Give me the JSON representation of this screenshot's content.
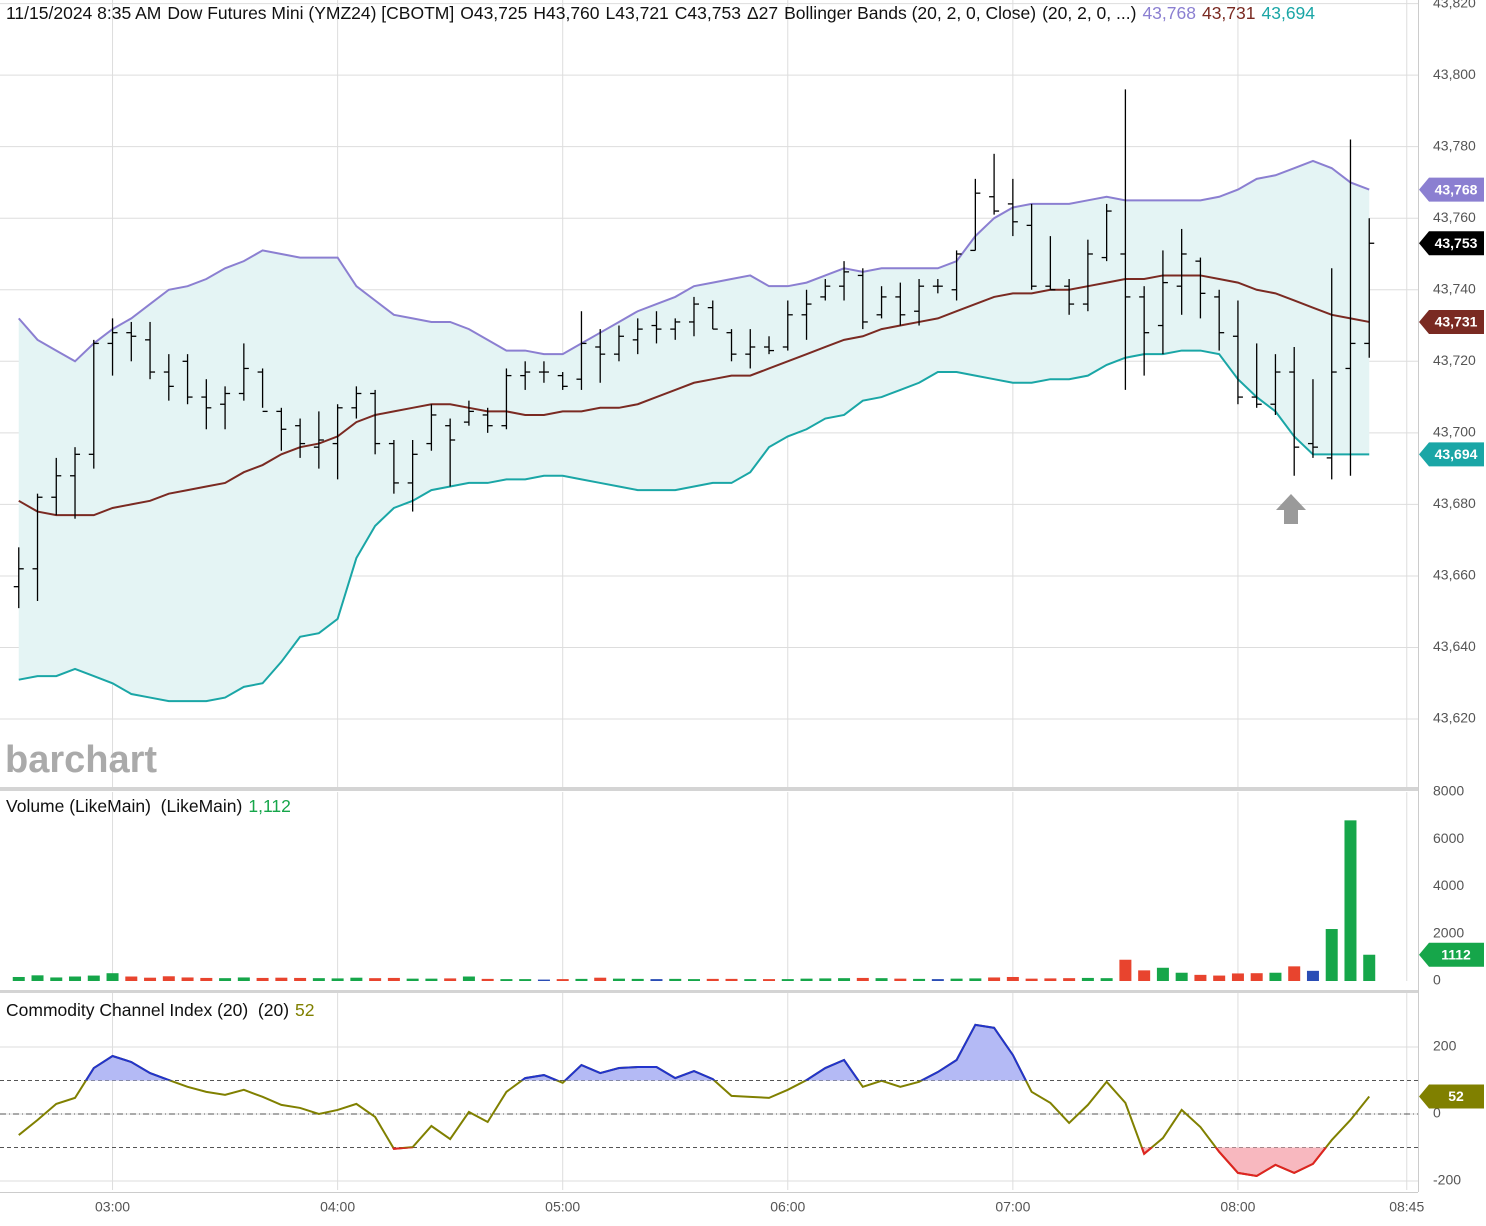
{
  "chart_data": [
    {
      "type": "ohlc",
      "title": "11/15/2024 8:35 AM",
      "symbol": "Dow Futures Mini (YMZ24) [CBOTM]",
      "ohlc_labels": [
        "O43,725",
        "H43,760",
        "L43,721",
        "C43,753"
      ],
      "change_label": "Δ27",
      "watermark": "barchart",
      "x": [
        "02:35",
        "02:40",
        "02:45",
        "02:50",
        "02:55",
        "03:00",
        "03:05",
        "03:10",
        "03:15",
        "03:20",
        "03:25",
        "03:30",
        "03:35",
        "03:40",
        "03:45",
        "03:50",
        "03:55",
        "04:00",
        "04:05",
        "04:10",
        "04:15",
        "04:20",
        "04:25",
        "04:30",
        "04:35",
        "04:40",
        "04:45",
        "04:50",
        "04:55",
        "05:00",
        "05:05",
        "05:10",
        "05:15",
        "05:20",
        "05:25",
        "05:30",
        "05:35",
        "05:40",
        "05:45",
        "05:50",
        "05:55",
        "06:00",
        "06:05",
        "06:10",
        "06:15",
        "06:20",
        "06:25",
        "06:30",
        "06:35",
        "06:40",
        "06:45",
        "06:50",
        "06:55",
        "07:00",
        "07:05",
        "07:10",
        "07:15",
        "07:20",
        "07:25",
        "07:30",
        "07:35",
        "07:40",
        "07:45",
        "07:50",
        "07:55",
        "08:00",
        "08:05",
        "08:10",
        "08:15",
        "08:20",
        "08:25",
        "08:30",
        "08:35"
      ],
      "xlim": [
        "02:30",
        "08:48"
      ],
      "xticks": [
        "03:00",
        "04:00",
        "05:00",
        "06:00",
        "07:00",
        "08:00",
        "08:45"
      ],
      "open": [
        43657,
        43662,
        43682,
        43688,
        43694,
        43725,
        43728,
        43726,
        43717,
        43720,
        43710,
        43708,
        43711,
        43717,
        43706,
        43702,
        43696,
        43697,
        43707,
        43711,
        43697,
        43686,
        43697,
        43702,
        43703,
        43705,
        43702,
        43716,
        43717,
        43716,
        43715,
        43724,
        43722,
        43726,
        43730,
        43729,
        43731,
        43735,
        43728,
        43722,
        43724,
        43724,
        43733,
        43738,
        43741,
        43744,
        43733,
        43738,
        43734,
        43741,
        43740,
        43751,
        43766,
        43764,
        43758,
        43741,
        43741,
        43736,
        43749,
        43750,
        43738,
        43730,
        43741,
        43748,
        43738,
        43727,
        43710,
        43708,
        43717,
        43697,
        43693,
        43718,
        43725
      ],
      "high": [
        43668,
        43683,
        43693,
        43696,
        43726,
        43732,
        43731,
        43731,
        43722,
        43722,
        43715,
        43713,
        43725,
        43718,
        43707,
        43704,
        43706,
        43708,
        43713,
        43712,
        43698,
        43698,
        43708,
        43704,
        43709,
        43707,
        43718,
        43720,
        43720,
        43717,
        43734,
        43729,
        43730,
        43732,
        43734,
        43732,
        43738,
        43737,
        43729,
        43729,
        43727,
        43737,
        43740,
        43743,
        43748,
        43746,
        43741,
        43742,
        43743,
        43743,
        43751,
        43771,
        43778,
        43771,
        43764,
        43755,
        43743,
        43754,
        43764,
        43796,
        43741,
        43751,
        43757,
        43749,
        43740,
        43737,
        43725,
        43722,
        43724,
        43715,
        43746,
        43782,
        43760
      ],
      "low": [
        43651,
        43653,
        43677,
        43676,
        43690,
        43716,
        43720,
        43715,
        43709,
        43708,
        43701,
        43701,
        43709,
        43707,
        43695,
        43693,
        43690,
        43687,
        43704,
        43694,
        43683,
        43678,
        43695,
        43685,
        43702,
        43700,
        43701,
        43712,
        43714,
        43712,
        43712,
        43714,
        43720,
        43722,
        43725,
        43726,
        43727,
        43729,
        43720,
        43718,
        43722,
        43723,
        43726,
        43737,
        43737,
        43729,
        43732,
        43730,
        43730,
        43739,
        43737,
        43751,
        43761,
        43755,
        43740,
        43740,
        43733,
        43734,
        43748,
        43712,
        43716,
        43722,
        43733,
        43732,
        43723,
        43708,
        43707,
        43705,
        43688,
        43693,
        43687,
        43688,
        43721
      ],
      "close": [
        43662,
        43682,
        43688,
        43694,
        43725,
        43728,
        43727,
        43717,
        43713,
        43710,
        43707,
        43711,
        43718,
        43706,
        43701,
        43697,
        43698,
        43707,
        43711,
        43697,
        43686,
        43694,
        43705,
        43698,
        43706,
        43702,
        43716,
        43717,
        43717,
        43713,
        43725,
        43722,
        43727,
        43729,
        43729,
        43731,
        43736,
        43729,
        43722,
        43724,
        43723,
        43733,
        43736,
        43741,
        43745,
        43731,
        43738,
        43733,
        43741,
        43741,
        43750,
        43767,
        43762,
        43759,
        43741,
        43740,
        43736,
        43750,
        43762,
        43738,
        43728,
        43742,
        43750,
        43739,
        43728,
        43710,
        43708,
        43717,
        43696,
        43696,
        43717,
        43725,
        43753
      ],
      "color": "#000000",
      "last_label": "43,753",
      "ylim": [
        43601,
        43821
      ],
      "yticks": [
        {
          "value": 43620,
          "label": "43,620"
        },
        {
          "value": 43640,
          "label": "43,640"
        },
        {
          "value": 43660,
          "label": "43,660"
        },
        {
          "value": 43680,
          "label": "43,680"
        },
        {
          "value": 43700,
          "label": "43,700"
        },
        {
          "value": 43720,
          "label": "43,720"
        },
        {
          "value": 43740,
          "label": "43,740"
        },
        {
          "value": 43760,
          "label": "43,760"
        },
        {
          "value": 43780,
          "label": "43,780"
        },
        {
          "value": 43800,
          "label": "43,800"
        },
        {
          "value": 43820,
          "label": "43,820"
        }
      ],
      "grid": true,
      "overlay": {
        "title": "Bollinger Bands (20, 2, 0, Close)",
        "params": "(20, 2, 0, ...)",
        "fill": "#e4f4f4",
        "series": [
          {
            "color": "#8b7fd1",
            "last_label": "43,768",
            "values": [
              43732,
              43726,
              43723,
              43720,
              43725,
              43729,
              43732,
              43736,
              43740,
              43741,
              43743,
              43746,
              43748,
              43751,
              43750,
              43749,
              43749,
              43749,
              43741,
              43737,
              43733,
              43732,
              43731,
              43731,
              43729,
              43726,
              43723,
              43723,
              43722,
              43722,
              43725,
              43728,
              43731,
              43734,
              43736,
              43738,
              43741,
              43742,
              43743,
              43744,
              43741,
              43741,
              43742,
              43744,
              43746,
              43745,
              43746,
              43746,
              43746,
              43746,
              43748,
              43755,
              43760,
              43763,
              43764,
              43764,
              43764,
              43765,
              43766,
              43765,
              43765,
              43765,
              43765,
              43765,
              43766,
              43768,
              43771,
              43772,
              43774,
              43776,
              43774,
              43770,
              43768
            ]
          },
          {
            "color": "#7a2a22",
            "last_label": "43,731",
            "values": [
              43681,
              43678,
              43677,
              43677,
              43677,
              43679,
              43680,
              43681,
              43683,
              43684,
              43685,
              43686,
              43689,
              43691,
              43694,
              43696,
              43697,
              43699,
              43703,
              43705,
              43706,
              43707,
              43708,
              43708,
              43707,
              43706,
              43706,
              43705,
              43705,
              43706,
              43706,
              43707,
              43707,
              43708,
              43710,
              43712,
              43714,
              43715,
              43716,
              43716,
              43718,
              43720,
              43722,
              43724,
              43726,
              43727,
              43729,
              43730,
              43731,
              43732,
              43734,
              43736,
              43738,
              43739,
              43739,
              43740,
              43740,
              43741,
              43742,
              43743,
              43743,
              43744,
              43744,
              43744,
              43743,
              43742,
              43740,
              43739,
              43737,
              43735,
              43733,
              43732,
              43731
            ]
          },
          {
            "color": "#1aa6a6",
            "last_label": "43,694",
            "values": [
              43631,
              43632,
              43632,
              43634,
              43632,
              43630,
              43627,
              43626,
              43625,
              43625,
              43625,
              43626,
              43629,
              43630,
              43636,
              43643,
              43644,
              43648,
              43665,
              43674,
              43679,
              43681,
              43684,
              43685,
              43686,
              43686,
              43687,
              43687,
              43688,
              43688,
              43687,
              43686,
              43685,
              43684,
              43684,
              43684,
              43685,
              43686,
              43686,
              43689,
              43696,
              43699,
              43701,
              43704,
              43705,
              43709,
              43710,
              43712,
              43714,
              43717,
              43717,
              43716,
              43715,
              43714,
              43714,
              43715,
              43715,
              43716,
              43719,
              43721,
              43722,
              43722,
              43723,
              43723,
              43722,
              43715,
              43710,
              43706,
              43699,
              43694,
              43694,
              43694,
              43694
            ]
          }
        ]
      }
    },
    {
      "type": "bar",
      "title": "Volume (LikeMain)  (LikeMain)",
      "last_label": "1,112",
      "values": [
        170,
        240,
        150,
        190,
        230,
        330,
        190,
        140,
        200,
        150,
        130,
        120,
        150,
        130,
        140,
        130,
        120,
        110,
        140,
        120,
        130,
        100,
        100,
        110,
        190,
        90,
        80,
        80,
        60,
        80,
        90,
        140,
        100,
        90,
        80,
        90,
        80,
        90,
        90,
        80,
        80,
        80,
        100,
        110,
        120,
        130,
        120,
        100,
        90,
        80,
        100,
        110,
        150,
        170,
        100,
        110,
        120,
        130,
        120,
        900,
        450,
        560,
        350,
        260,
        230,
        320,
        330,
        350,
        620,
        430,
        2200,
        6800,
        1112
      ],
      "up_color": "#16a64a",
      "down_color": "#e8442e",
      "flat_color": "#2a4db5",
      "ylim": [
        0,
        8000
      ],
      "yticks": [
        0,
        2000,
        4000,
        6000,
        8000
      ]
    },
    {
      "type": "line",
      "title": "Commodity Channel Index (20)  (20)",
      "values": [
        -63,
        -18,
        30,
        48,
        137,
        173,
        155,
        122,
        101,
        81,
        66,
        57,
        72,
        51,
        27,
        18,
        0,
        12,
        30,
        -9,
        -104,
        -99,
        -36,
        -75,
        6,
        -24,
        66,
        107,
        116,
        93,
        146,
        122,
        137,
        140,
        140,
        107,
        128,
        104,
        54,
        51,
        48,
        72,
        101,
        137,
        161,
        81,
        99,
        81,
        96,
        125,
        161,
        266,
        257,
        176,
        66,
        33,
        -27,
        27,
        96,
        33,
        -119,
        -72,
        12,
        -39,
        -113,
        -176,
        -185,
        -152,
        -176,
        -149,
        -78,
        -18,
        52
      ],
      "color": "#808000",
      "above_color": "#2233cc",
      "below_color": "#e02222",
      "above_fill": "#b4baf5",
      "below_fill": "#f8b8bf",
      "levels": [
        -100,
        0,
        100
      ],
      "ylim": [
        -227,
        361
      ],
      "yticks": [
        -200,
        0,
        200
      ]
    }
  ]
}
